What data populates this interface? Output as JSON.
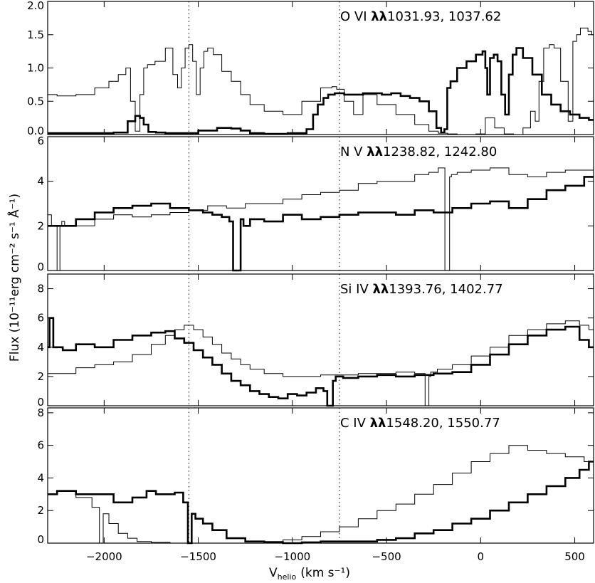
{
  "figure": {
    "ylabel": "Flux (10⁻¹¹erg cm⁻² s⁻¹ Å⁻¹)",
    "xlabel": "V",
    "xlabel_sub": "helio",
    "xlabel_units": "(km s⁻¹)",
    "markers_kms": [
      -1550,
      -750
    ]
  },
  "chart_data": [
    {
      "type": "line",
      "title": "O VI λλ1031.93, 1037.62",
      "ion": "O VI",
      "lambda_symbol": "λλ",
      "wavelengths": "1031.93, 1037.62",
      "xlim": [
        -2300,
        600
      ],
      "ylim": [
        0,
        2.0
      ],
      "xticks": [
        -2000,
        -1500,
        -1000,
        -500,
        0,
        500
      ],
      "yticks": [
        "0.0",
        "0.5",
        "1.0",
        "1.5",
        "2.0"
      ],
      "series": [
        {
          "style": "thick",
          "x": [
            -2300,
            -2000,
            -1900,
            -1850,
            -1820,
            -1800,
            -1780,
            -1750,
            -1700,
            -1650,
            -1600,
            -1550,
            -1450,
            -1350,
            -1300,
            -1250,
            -1200,
            -1100,
            -950,
            -900,
            -880,
            -850,
            -820,
            -800,
            -750,
            -700,
            -650,
            -600,
            -550,
            -500,
            -450,
            -400,
            -350,
            -300,
            -250,
            -220,
            -200,
            -185,
            -170,
            -150,
            -100,
            -50,
            0,
            20,
            30,
            40,
            60,
            80,
            100,
            120,
            140,
            160,
            180,
            200,
            250,
            300,
            350,
            400,
            450,
            500,
            550,
            600
          ],
          "values": [
            0.02,
            0.02,
            0.03,
            0.2,
            0.28,
            0.25,
            0.15,
            0.04,
            0.03,
            0.02,
            0.02,
            0.02,
            0.06,
            0.1,
            0.09,
            0.06,
            0.02,
            0.01,
            0.02,
            0.08,
            0.3,
            0.45,
            0.55,
            0.6,
            0.62,
            0.6,
            0.6,
            0.62,
            0.62,
            0.6,
            0.62,
            0.58,
            0.55,
            0.5,
            0.35,
            0.1,
            0.03,
            0.08,
            0.7,
            0.8,
            1.0,
            1.1,
            1.2,
            1.25,
            1.0,
            0.6,
            1.15,
            1.2,
            1.1,
            0.6,
            0.3,
            0.9,
            1.2,
            1.3,
            1.15,
            0.9,
            0.6,
            0.45,
            0.35,
            0.3,
            0.25,
            0.22
          ]
        },
        {
          "style": "thin",
          "x": [
            -2300,
            -2200,
            -2100,
            -2000,
            -1950,
            -1900,
            -1870,
            -1850,
            -1820,
            -1800,
            -1780,
            -1760,
            -1700,
            -1650,
            -1620,
            -1600,
            -1580,
            -1560,
            -1540,
            -1520,
            -1500,
            -1480,
            -1460,
            -1440,
            -1400,
            -1350,
            -1300,
            -1250,
            -1200,
            -1100,
            -1000,
            -900,
            -800,
            -780,
            -750,
            -700,
            -650,
            -600,
            -500,
            -400,
            -300,
            -250,
            -200,
            -150,
            -100,
            -50,
            0,
            50,
            100,
            150,
            200,
            250,
            280,
            300,
            320,
            350,
            380,
            400,
            450,
            480,
            500,
            520,
            540,
            560,
            580,
            600
          ],
          "values": [
            0.6,
            0.58,
            0.6,
            0.7,
            0.8,
            0.9,
            1.0,
            0.5,
            0.05,
            0.6,
            1.0,
            1.05,
            1.1,
            1.3,
            0.9,
            0.7,
            1.0,
            1.3,
            1.35,
            1.1,
            0.6,
            1.0,
            1.25,
            1.3,
            1.2,
            0.95,
            0.8,
            0.6,
            0.45,
            0.35,
            0.3,
            0.5,
            0.7,
            0.72,
            0.68,
            0.5,
            0.3,
            0.6,
            0.45,
            0.3,
            0.15,
            0.05,
            0.02,
            0.01,
            0.0,
            0.0,
            0.01,
            0.25,
            0.1,
            0.01,
            0.0,
            0.1,
            0.35,
            0.2,
            0.8,
            1.3,
            1.35,
            1.3,
            0.8,
            0.2,
            1.4,
            1.5,
            1.6,
            1.6,
            1.55,
            1.5
          ]
        }
      ]
    },
    {
      "type": "line",
      "title": "N V λλ1238.82, 1242.80",
      "ion": "N V",
      "lambda_symbol": "λλ",
      "wavelengths": "1238.82, 1242.80",
      "xlim": [
        -2300,
        600
      ],
      "ylim": [
        0,
        6
      ],
      "xticks": [
        -2000,
        -1500,
        -1000,
        -500,
        0,
        500
      ],
      "yticks": [
        "0",
        "2",
        "4",
        "6"
      ],
      "series": [
        {
          "style": "thick",
          "x": [
            -2300,
            -2200,
            -2100,
            -2000,
            -1900,
            -1800,
            -1700,
            -1600,
            -1500,
            -1450,
            -1400,
            -1350,
            -1320,
            -1310,
            -1300,
            -1280,
            -1270,
            -1250,
            -1200,
            -1100,
            -1000,
            -900,
            -800,
            -700,
            -600,
            -500,
            -400,
            -300,
            -200,
            -100,
            0,
            100,
            200,
            300,
            400,
            500,
            600
          ],
          "values": [
            2.0,
            2.0,
            2.3,
            2.6,
            2.8,
            2.9,
            3.0,
            2.8,
            2.7,
            2.6,
            2.5,
            2.4,
            2.2,
            0.0,
            0.0,
            0.0,
            2.3,
            2.0,
            2.3,
            2.2,
            2.5,
            2.3,
            2.4,
            2.5,
            2.6,
            2.6,
            2.5,
            2.7,
            2.6,
            2.8,
            3.0,
            3.1,
            2.8,
            3.2,
            3.6,
            3.8,
            4.2
          ]
        },
        {
          "style": "thin",
          "x": [
            -2300,
            -2260,
            -2240,
            -2230,
            -2220,
            -2200,
            -2100,
            -2000,
            -1900,
            -1800,
            -1700,
            -1600,
            -1500,
            -1400,
            -1300,
            -1200,
            -1100,
            -1000,
            -900,
            -800,
            -700,
            -600,
            -500,
            -400,
            -300,
            -250,
            -200,
            -180,
            -170,
            -160,
            -150,
            -100,
            0,
            100,
            200,
            300,
            400,
            500,
            600
          ],
          "values": [
            2.5,
            2.0,
            0.0,
            2.0,
            2.2,
            2.0,
            2.0,
            2.3,
            2.5,
            2.4,
            2.5,
            2.6,
            2.7,
            2.9,
            2.8,
            3.0,
            3.0,
            3.2,
            3.4,
            3.5,
            3.6,
            3.9,
            4.0,
            4.0,
            4.3,
            4.4,
            4.6,
            0.0,
            0.0,
            4.2,
            4.3,
            4.4,
            4.5,
            4.6,
            4.3,
            4.2,
            4.4,
            4.5,
            4.5
          ]
        }
      ]
    },
    {
      "type": "line",
      "title": "Si IV λλ1393.76, 1402.77",
      "ion": "Si IV",
      "lambda_symbol": "λλ",
      "wavelengths": "1393.76, 1402.77",
      "xlim": [
        -2300,
        600
      ],
      "ylim": [
        0,
        9
      ],
      "xticks": [
        -2000,
        -1500,
        -1000,
        -500,
        0,
        500
      ],
      "yticks": [
        "0",
        "2",
        "4",
        "6",
        "8"
      ],
      "series": [
        {
          "style": "thick",
          "x": [
            -2300,
            -2280,
            -2260,
            -2240,
            -2200,
            -2100,
            -2000,
            -1900,
            -1800,
            -1700,
            -1650,
            -1600,
            -1550,
            -1500,
            -1450,
            -1400,
            -1350,
            -1300,
            -1250,
            -1200,
            -1150,
            -1100,
            -1050,
            -1000,
            -950,
            -900,
            -850,
            -820,
            -810,
            -800,
            -790,
            -780,
            -760,
            -700,
            -600,
            -500,
            -400,
            -300,
            -200,
            -100,
            0,
            100,
            200,
            300,
            400,
            500,
            550,
            600
          ],
          "values": [
            4.0,
            6.0,
            4.0,
            4.0,
            3.8,
            4.2,
            4.0,
            4.5,
            4.8,
            5.0,
            5.1,
            4.6,
            4.3,
            3.8,
            3.3,
            2.8,
            2.2,
            1.7,
            1.4,
            1.0,
            0.8,
            0.6,
            0.5,
            0.8,
            0.7,
            0.9,
            1.2,
            1.0,
            0.0,
            0.0,
            0.0,
            1.7,
            2.0,
            1.9,
            2.0,
            2.1,
            2.0,
            2.1,
            2.2,
            2.3,
            2.8,
            3.5,
            4.2,
            4.8,
            5.2,
            5.4,
            4.5,
            4.0
          ]
        },
        {
          "style": "thin",
          "x": [
            -2300,
            -2200,
            -2100,
            -2000,
            -1900,
            -1800,
            -1700,
            -1650,
            -1600,
            -1550,
            -1500,
            -1450,
            -1400,
            -1350,
            -1300,
            -1250,
            -1200,
            -1100,
            -1000,
            -900,
            -800,
            -700,
            -600,
            -500,
            -400,
            -300,
            -290,
            -280,
            -270,
            -260,
            -200,
            -100,
            0,
            100,
            200,
            300,
            400,
            500,
            550,
            600
          ],
          "values": [
            2.2,
            2.2,
            2.6,
            2.8,
            3.0,
            3.5,
            4.2,
            4.8,
            5.2,
            5.5,
            5.2,
            4.7,
            4.2,
            3.6,
            3.2,
            2.8,
            2.5,
            2.2,
            2.0,
            2.0,
            2.1,
            2.1,
            2.2,
            2.2,
            2.3,
            2.2,
            0.0,
            0.0,
            2.0,
            2.3,
            2.5,
            2.8,
            3.4,
            4.0,
            4.8,
            5.2,
            5.6,
            5.8,
            5.5,
            5.2
          ]
        }
      ]
    },
    {
      "type": "line",
      "title": "C IV λλ1548.20, 1550.77",
      "ion": "C IV",
      "lambda_symbol": "λλ",
      "wavelengths": "1548.20, 1550.77",
      "xlim": [
        -2300,
        600
      ],
      "ylim": [
        0,
        8.3
      ],
      "xticks": [
        -2000,
        -1500,
        -1000,
        -500,
        0,
        500
      ],
      "yticks": [
        "0",
        "2",
        "4",
        "6",
        "8"
      ],
      "series": [
        {
          "style": "thick",
          "x": [
            -2300,
            -2200,
            -2100,
            -2000,
            -1900,
            -1800,
            -1750,
            -1700,
            -1650,
            -1600,
            -1560,
            -1550,
            -1540,
            -1530,
            -1500,
            -1450,
            -1400,
            -1300,
            -1200,
            -1100,
            -1000,
            -900,
            -800,
            -700,
            -600,
            -500,
            -400,
            -300,
            -200,
            -100,
            0,
            100,
            200,
            300,
            400,
            500,
            550,
            600
          ],
          "values": [
            3.0,
            3.2,
            3.0,
            3.0,
            2.5,
            2.8,
            3.2,
            3.0,
            3.0,
            3.1,
            2.5,
            0.0,
            0.0,
            1.8,
            1.5,
            1.2,
            0.8,
            0.3,
            0.1,
            0.05,
            0.0,
            0.05,
            0.1,
            0.1,
            0.1,
            0.2,
            0.3,
            0.6,
            0.8,
            1.2,
            1.5,
            2.0,
            2.5,
            3.0,
            3.5,
            4.0,
            4.5,
            5.0
          ]
        },
        {
          "style": "thin",
          "x": [
            -2300,
            -2200,
            -2100,
            -2030,
            -2020,
            -2010,
            -2000,
            -1950,
            -1900,
            -1850,
            -1800,
            -1700,
            -1600,
            -1500,
            -1400,
            -1300,
            -1200,
            -1100,
            -1000,
            -900,
            -800,
            -700,
            -600,
            -500,
            -400,
            -300,
            -200,
            -100,
            0,
            100,
            200,
            300,
            400,
            500,
            600
          ],
          "values": [
            3.0,
            3.2,
            2.8,
            2.2,
            0.0,
            0.0,
            1.8,
            1.2,
            0.6,
            0.3,
            0.1,
            0.05,
            0.0,
            0.0,
            0.0,
            0.0,
            0.0,
            0.1,
            0.2,
            0.4,
            0.7,
            1.0,
            1.5,
            2.0,
            2.4,
            3.0,
            3.6,
            4.3,
            5.0,
            5.5,
            6.0,
            5.7,
            5.5,
            5.3,
            5.0
          ]
        }
      ]
    }
  ]
}
